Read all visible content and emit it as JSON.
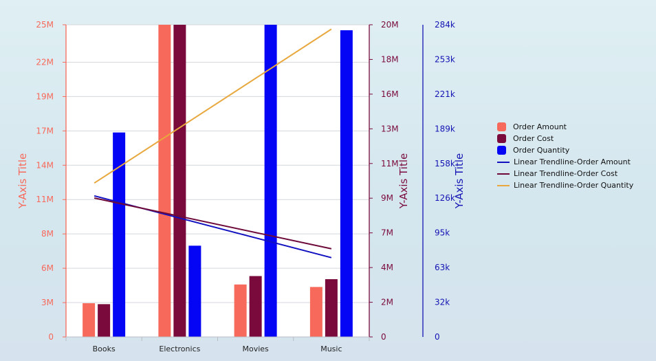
{
  "chart_data": {
    "type": "bar",
    "categories": [
      "Books",
      "Electronics",
      "Movies",
      "Music"
    ],
    "axes": [
      {
        "id": "y1",
        "title": "Y-Axis Title",
        "min": 0,
        "max": 25000000,
        "ticks": [
          0,
          2750000,
          5500000,
          8250000,
          11000000,
          13750000,
          16500000,
          19250000,
          22000000,
          25000000
        ],
        "tick_labels": [
          "0",
          "3M",
          "6M",
          "8M",
          "11M",
          "14M",
          "17M",
          "19M",
          "22M",
          "25M"
        ],
        "color": "#f7695a"
      },
      {
        "id": "y2",
        "title": "Y-Axis Title",
        "min": 0,
        "max": 20000000,
        "ticks": [
          0,
          2222222,
          4444444,
          6666667,
          8888889,
          11111111,
          13333333,
          15555556,
          17777778,
          20000000
        ],
        "tick_labels": [
          "0",
          "2M",
          "4M",
          "7M",
          "9M",
          "11M",
          "13M",
          "16M",
          "18M",
          "20M"
        ],
        "color": "#7a0a3c"
      },
      {
        "id": "y3",
        "title": "Y-Axis Title",
        "min": 0,
        "max": 284000,
        "ticks": [
          0,
          31556,
          63111,
          94667,
          126222,
          157778,
          189333,
          220889,
          252444,
          284000
        ],
        "tick_labels": [
          "0",
          "32k",
          "63k",
          "95k",
          "126k",
          "158k",
          "189k",
          "221k",
          "253k",
          "284k"
        ],
        "color": "#1414b4"
      }
    ],
    "series": [
      {
        "name": "Order Amount",
        "kind": "bar",
        "axis": "y1",
        "color": "#f7695a",
        "values": [
          2700000,
          25000000,
          4200000,
          4000000
        ]
      },
      {
        "name": "Order Cost",
        "kind": "bar",
        "axis": "y2",
        "color": "#7a0a3c",
        "values": [
          2100000,
          20000000,
          3900000,
          3700000
        ]
      },
      {
        "name": "Order Quantity",
        "kind": "bar",
        "axis": "y3",
        "color": "#0505f5",
        "values": [
          186000,
          83000,
          284000,
          279000
        ]
      },
      {
        "name": "Linear Trendline-Order Amount",
        "kind": "line",
        "axis": "y1",
        "color": "#1010c0",
        "values": [
          11300000,
          9100000,
          6600000,
          6350000
        ],
        "endpoints": [
          11300000,
          6350000
        ]
      },
      {
        "name": "Linear Trendline-Order Cost",
        "kind": "line",
        "axis": "y2",
        "color": "#6e0a3a",
        "values": [
          8900000,
          7700000,
          6400000,
          5650000
        ],
        "endpoints": [
          8900000,
          5650000
        ]
      },
      {
        "name": "Linear Trendline-Order Quantity",
        "kind": "line",
        "axis": "y3",
        "color": "#e8a83e",
        "values": [
          140000,
          180000,
          240000,
          280000
        ],
        "endpoints": [
          140000,
          280000
        ]
      }
    ],
    "legend_position": "right"
  }
}
